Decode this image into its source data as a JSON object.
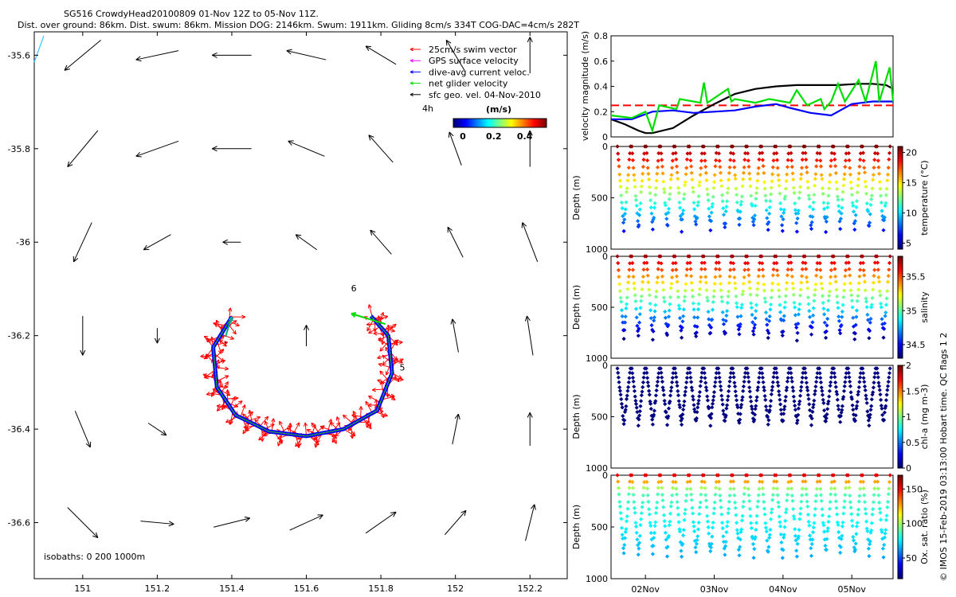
{
  "header": {
    "line1": "SG516 CrowdyHead20100809 01-Nov 12Z to 05-Nov 11Z.",
    "line2": "Dist. over ground: 86km. Dist. swum: 86km. Mission DOG: 2146km. Swum: 1911km. Gliding 8cm/s 334T COG-DAC=4cm/s 282T"
  },
  "credit": "© IMOS 15-Feb-2019 03:13:00 Hobart time. QC flags 1  2",
  "chart_data": [
    {
      "type": "scatter",
      "name": "map",
      "xlim": [
        150.87,
        152.3
      ],
      "ylim": [
        -36.72,
        -35.55
      ],
      "x_ticks": [
        151,
        151.2,
        151.4,
        151.6,
        151.8,
        152,
        152.2
      ],
      "x_tick_labels": [
        "151",
        "151.2",
        "151.4",
        "151.6",
        "151.8",
        "152",
        "152.2"
      ],
      "y_ticks": [
        -35.6,
        -35.8,
        -36,
        -36.2,
        -36.4,
        -36.6
      ],
      "y_tick_labels": [
        "-35.6",
        "-35.8",
        "-36",
        "-36.2",
        "-36.4",
        "-36.6"
      ],
      "legend": {
        "placement": "top-right",
        "entries": [
          {
            "label": "25cm/s swim vector",
            "color": "#ff0000"
          },
          {
            "label": "GPS surface velocity",
            "color": "#ff00ff"
          },
          {
            "label": "dive-avg current veloc.",
            "color": "#0000ff"
          },
          {
            "label": "net glider velocity",
            "color": "#00dd00"
          },
          {
            "label": "sfc geo. vel. 04-Nov-2010",
            "color": "#000000"
          }
        ],
        "extra_label": "4h"
      },
      "colorbar": {
        "label": "(m/s)",
        "range": [
          0,
          0.5
        ],
        "ticks": [
          0,
          0.2,
          0.4
        ],
        "tick_labels": [
          "0",
          "0.2",
          "0.4"
        ]
      },
      "isobaths_label": "isobaths: 0   200   1000m",
      "annotations": [
        {
          "text": "6",
          "lon": 151.72,
          "lat": -36.105
        },
        {
          "text": "5",
          "lon": 151.85,
          "lat": -36.275
        },
        {
          "text": "'",
          "lon": 151.38,
          "lat": -36.225
        }
      ],
      "track": [
        {
          "lon": 151.4,
          "lat": -36.16
        },
        {
          "lon": 151.35,
          "lat": -36.225
        },
        {
          "lon": 151.36,
          "lat": -36.31
        },
        {
          "lon": 151.41,
          "lat": -36.37
        },
        {
          "lon": 151.5,
          "lat": -36.405
        },
        {
          "lon": 151.6,
          "lat": -36.415
        },
        {
          "lon": 151.7,
          "lat": -36.4
        },
        {
          "lon": 151.79,
          "lat": -36.36
        },
        {
          "lon": 151.83,
          "lat": -36.28
        },
        {
          "lon": 151.82,
          "lat": -36.2
        },
        {
          "lon": 151.77,
          "lat": -36.155
        }
      ],
      "geo_vectors": [
        {
          "lon": 151.0,
          "lat": -35.6,
          "u": -0.12,
          "v": -0.1
        },
        {
          "lon": 151.2,
          "lat": -35.6,
          "u": -0.14,
          "v": -0.03
        },
        {
          "lon": 151.4,
          "lat": -35.6,
          "u": -0.13,
          "v": 0.0
        },
        {
          "lon": 151.6,
          "lat": -35.6,
          "u": -0.13,
          "v": 0.03
        },
        {
          "lon": 151.8,
          "lat": -35.6,
          "u": -0.1,
          "v": 0.06
        },
        {
          "lon": 152.0,
          "lat": -35.6,
          "u": -0.06,
          "v": 0.1
        },
        {
          "lon": 152.2,
          "lat": -35.6,
          "u": 0.0,
          "v": 0.12
        },
        {
          "lon": 151.0,
          "lat": -35.8,
          "u": -0.1,
          "v": -0.12
        },
        {
          "lon": 151.2,
          "lat": -35.8,
          "u": -0.14,
          "v": -0.05
        },
        {
          "lon": 151.4,
          "lat": -35.8,
          "u": -0.13,
          "v": 0.0
        },
        {
          "lon": 151.6,
          "lat": -35.8,
          "u": -0.12,
          "v": 0.05
        },
        {
          "lon": 151.8,
          "lat": -35.8,
          "u": -0.08,
          "v": 0.09
        },
        {
          "lon": 152.0,
          "lat": -35.8,
          "u": -0.04,
          "v": 0.11
        },
        {
          "lon": 152.2,
          "lat": -35.8,
          "u": 0.0,
          "v": 0.12
        },
        {
          "lon": 151.0,
          "lat": -36.0,
          "u": -0.06,
          "v": -0.13
        },
        {
          "lon": 151.2,
          "lat": -36.0,
          "u": -0.09,
          "v": -0.05
        },
        {
          "lon": 151.4,
          "lat": -36.0,
          "u": -0.06,
          "v": 0.0
        },
        {
          "lon": 151.6,
          "lat": -36.0,
          "u": -0.07,
          "v": 0.05
        },
        {
          "lon": 151.8,
          "lat": -36.0,
          "u": -0.07,
          "v": 0.08
        },
        {
          "lon": 152.0,
          "lat": -36.0,
          "u": -0.05,
          "v": 0.1
        },
        {
          "lon": 152.2,
          "lat": -36.0,
          "u": -0.05,
          "v": 0.13
        },
        {
          "lon": 151.0,
          "lat": -36.2,
          "u": 0.0,
          "v": -0.13
        },
        {
          "lon": 151.2,
          "lat": -36.2,
          "u": 0.0,
          "v": -0.05
        },
        {
          "lon": 151.6,
          "lat": -36.2,
          "u": 0.0,
          "v": 0.07
        },
        {
          "lon": 152.0,
          "lat": -36.2,
          "u": -0.02,
          "v": 0.11
        },
        {
          "lon": 152.2,
          "lat": -36.2,
          "u": -0.02,
          "v": 0.13
        },
        {
          "lon": 151.0,
          "lat": -36.4,
          "u": 0.05,
          "v": -0.12
        },
        {
          "lon": 151.2,
          "lat": -36.4,
          "u": 0.06,
          "v": -0.04
        },
        {
          "lon": 152.0,
          "lat": -36.4,
          "u": 0.02,
          "v": 0.1
        },
        {
          "lon": 152.2,
          "lat": -36.4,
          "u": 0.0,
          "v": 0.11
        },
        {
          "lon": 151.0,
          "lat": -36.6,
          "u": 0.1,
          "v": -0.1
        },
        {
          "lon": 151.2,
          "lat": -36.6,
          "u": 0.11,
          "v": -0.01
        },
        {
          "lon": 151.4,
          "lat": -36.6,
          "u": 0.12,
          "v": 0.03
        },
        {
          "lon": 151.6,
          "lat": -36.6,
          "u": 0.11,
          "v": 0.05
        },
        {
          "lon": 151.8,
          "lat": -36.6,
          "u": 0.1,
          "v": 0.07
        },
        {
          "lon": 152.0,
          "lat": -36.6,
          "u": 0.07,
          "v": 0.08
        },
        {
          "lon": 152.2,
          "lat": -36.6,
          "u": 0.03,
          "v": 0.12
        }
      ]
    },
    {
      "type": "line",
      "name": "velocity",
      "ylabel": "velocity magnitude (m/s)",
      "ylim": [
        0,
        0.8
      ],
      "y_ticks": [
        0,
        0.2,
        0.4,
        0.6,
        0.8
      ],
      "y_tick_labels": [
        "0",
        "0.2",
        "0.4",
        "0.6",
        "0.8"
      ],
      "xlim": [
        0,
        4.1
      ],
      "series": [
        {
          "color": "#000000",
          "x": [
            0,
            0.2,
            0.4,
            0.5,
            0.6,
            0.9,
            1.2,
            1.5,
            1.8,
            2.1,
            2.4,
            2.7,
            3.0,
            3.3,
            3.6,
            3.8,
            4.0,
            4.1
          ],
          "values": [
            0.14,
            0.1,
            0.05,
            0.03,
            0.03,
            0.07,
            0.17,
            0.26,
            0.34,
            0.38,
            0.4,
            0.41,
            0.41,
            0.41,
            0.42,
            0.42,
            0.41,
            0.38
          ]
        },
        {
          "color": "#0000ff",
          "x": [
            0,
            0.3,
            0.6,
            0.9,
            1.2,
            1.5,
            1.8,
            2.1,
            2.4,
            2.6,
            2.9,
            3.2,
            3.5,
            3.8,
            4.1
          ],
          "values": [
            0.14,
            0.14,
            0.2,
            0.21,
            0.19,
            0.2,
            0.21,
            0.24,
            0.26,
            0.23,
            0.19,
            0.17,
            0.26,
            0.28,
            0.28
          ]
        },
        {
          "color": "#00dd00",
          "x": [
            0,
            0.3,
            0.5,
            0.6,
            0.7,
            0.95,
            1.0,
            1.3,
            1.35,
            1.4,
            1.7,
            1.75,
            1.8,
            2.1,
            2.3,
            2.6,
            2.7,
            2.85,
            3.05,
            3.1,
            3.2,
            3.3,
            3.4,
            3.6,
            3.7,
            3.85,
            3.9,
            4.05,
            4.1
          ],
          "values": [
            0.17,
            0.15,
            0.2,
            0.05,
            0.25,
            0.22,
            0.3,
            0.27,
            0.43,
            0.27,
            0.38,
            0.28,
            0.3,
            0.27,
            0.3,
            0.27,
            0.37,
            0.25,
            0.3,
            0.22,
            0.28,
            0.42,
            0.28,
            0.45,
            0.28,
            0.6,
            0.28,
            0.55,
            0.28
          ]
        }
      ],
      "reference_line": {
        "value": 0.25,
        "color": "#ff0000",
        "style": "dashed"
      }
    },
    {
      "type": "scatter",
      "name": "temperature",
      "ylabel": "Depth (m)",
      "ylim": [
        0,
        1000
      ],
      "y_ticks": [
        0,
        500,
        1000
      ],
      "y_tick_labels": [
        "0",
        "500",
        "1000"
      ],
      "colorbar": {
        "label": "temperature (°C)",
        "range": [
          4,
          21
        ],
        "ticks": [
          5,
          10,
          15,
          20
        ],
        "tick_labels": [
          "5",
          "10",
          "15",
          "20"
        ],
        "colormap": "jet"
      },
      "dive_count": 19,
      "max_depth": 840,
      "min_depth": 0
    },
    {
      "type": "scatter",
      "name": "salinity",
      "ylabel": "Depth (m)",
      "ylim": [
        0,
        1000
      ],
      "y_ticks": [
        0,
        500,
        1000
      ],
      "y_tick_labels": [
        "0",
        "500",
        "1000"
      ],
      "colorbar": {
        "label": "salinity",
        "range": [
          34.3,
          35.8
        ],
        "ticks": [
          34.5,
          35,
          35.5
        ],
        "tick_labels": [
          "34.5",
          "35",
          "35.5"
        ],
        "colormap": "jet"
      },
      "dive_count": 19,
      "max_depth": 830,
      "min_depth": 0
    },
    {
      "type": "scatter",
      "name": "chla",
      "ylabel": "Depth (m)",
      "ylim": [
        0,
        1000
      ],
      "y_ticks": [
        0,
        500,
        1000
      ],
      "y_tick_labels": [
        "0",
        "500",
        "1000"
      ],
      "colorbar": {
        "label": "chl-a (mg m-3)",
        "range": [
          0,
          2
        ],
        "ticks": [
          0,
          0.5,
          1,
          1.5,
          2
        ],
        "tick_labels": [
          "0",
          "0.5",
          "1",
          "1.5",
          "2"
        ],
        "colormap": "jet"
      },
      "dive_count": 19,
      "max_depth": 590,
      "min_depth": 30
    },
    {
      "type": "scatter",
      "name": "oxygen",
      "ylabel": "Depth (m)",
      "ylim": [
        0,
        1000
      ],
      "y_ticks": [
        0,
        500,
        1000
      ],
      "y_tick_labels": [
        "0",
        "500",
        "1000"
      ],
      "colorbar": {
        "label": "Ox. sat. ratio (%)",
        "range": [
          20,
          170
        ],
        "ticks": [
          50,
          100,
          150
        ],
        "tick_labels": [
          "50",
          "100",
          "150"
        ],
        "colormap": "jet"
      },
      "dive_count": 19,
      "max_depth": 800,
      "min_depth": 0,
      "x_ticks": [
        0.5,
        1.5,
        2.5,
        3.5
      ],
      "x_tick_labels": [
        "02Nov",
        "03Nov",
        "04Nov",
        "05Nov"
      ],
      "xlim": [
        0,
        4.1
      ]
    }
  ]
}
